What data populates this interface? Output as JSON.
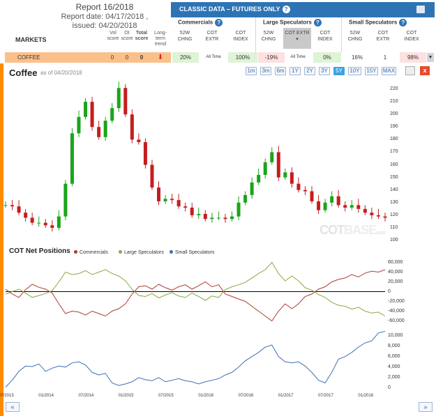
{
  "report": {
    "title": "Report 16/2018",
    "date": "Report date: 04/17/2018 ,",
    "issued": "issued: 04/20/2018"
  },
  "table_header": {
    "markets": "MARKETS",
    "vol_score": "Vol score",
    "oi_score": "OI score",
    "total_score": "Total score",
    "long_term": "Long-term trend",
    "classic": "CLASSIC DATA – FUTURES ONLY",
    "groups": [
      "Commercials",
      "Large Speculators",
      "Small Speculators"
    ],
    "sub": {
      "chng": "52W CHNG",
      "extr": "COT EXTR",
      "index": "COT INDEX"
    }
  },
  "coffee": {
    "name": "COFFEE",
    "vol": "0",
    "oi": "0",
    "total": "0",
    "com_chng": "20%",
    "com_extr": "All Time",
    "com_index": "100%",
    "lspec_chng": "-19%",
    "lspec_extr": "All Time",
    "lspec_index": "0%",
    "sspec_chng": "16%",
    "sspec_extr": "1",
    "sspec_index": "98%"
  },
  "chart_header": {
    "title": "Coffee",
    "asof": "as of 04/20/2018",
    "close": "x"
  },
  "ranges": [
    "1m",
    "3m",
    "6m",
    "1Y",
    "2Y",
    "3Y",
    "5Y",
    "10Y",
    "15Y",
    "MAX"
  ],
  "active_range": "5Y",
  "net_positions": {
    "title": "COT Net Positions",
    "legend": [
      "Commercials",
      "Large Speculators",
      "Small Speculators"
    ]
  },
  "watermark": {
    "main": "COT",
    "sub": "BASE",
    "tld": ".com"
  },
  "nav": {
    "prev": "«",
    "next": "»"
  },
  "colors": {
    "up": "#1aa51a",
    "down": "#c41e1e",
    "commercials": "#b03a2e",
    "large_specs": "#8aa83a",
    "small_specs": "#3d6fb5",
    "accent": "#ff8a00",
    "header_blue": "#2e74b5"
  },
  "chart_data": [
    {
      "type": "candlestick",
      "title": "Coffee",
      "ylim": [
        100,
        225
      ],
      "yticks": [
        100,
        110,
        120,
        130,
        140,
        150,
        160,
        170,
        180,
        190,
        200,
        210,
        220
      ],
      "x_labels": [
        "07/2013",
        "01/2014",
        "07/2014",
        "01/2015",
        "07/2015",
        "01/2016",
        "07/2016",
        "01/2017",
        "07/2017",
        "01/2018"
      ],
      "x_ticks": [
        0,
        6,
        12,
        18,
        24,
        30,
        36,
        42,
        48,
        54
      ],
      "n_months": 58,
      "closes": [
        128,
        127,
        122,
        118,
        114,
        114,
        112,
        110,
        119,
        145,
        185,
        198,
        210,
        190,
        182,
        195,
        205,
        221,
        200,
        180,
        178,
        160,
        142,
        131,
        133,
        132,
        127,
        126,
        120,
        121,
        117,
        118,
        118,
        117,
        119,
        130,
        136,
        146,
        152,
        162,
        170,
        150,
        154,
        145,
        140,
        139,
        131,
        124,
        130,
        135,
        128,
        126,
        128,
        125,
        122,
        120,
        119,
        118
      ]
    },
    {
      "type": "line",
      "title": "COT Net Positions",
      "ylim": [
        -65000,
        65000
      ],
      "yticks": [
        -60000,
        -40000,
        -20000,
        0,
        20000,
        40000,
        60000
      ],
      "ytick_labels": [
        "-60,000",
        "-40,000",
        "-20,000",
        "0",
        "20,000",
        "40,000",
        "60,000"
      ],
      "n_months": 58,
      "series": [
        {
          "name": "Commercials",
          "values": [
            5000,
            -5000,
            -12000,
            4000,
            15000,
            9000,
            5000,
            -3000,
            -25000,
            -45000,
            -40000,
            -42000,
            -48000,
            -40000,
            -45000,
            -50000,
            -40000,
            -35000,
            -25000,
            -5000,
            10000,
            12000,
            5000,
            15000,
            8000,
            3000,
            10000,
            14000,
            5000,
            12000,
            20000,
            10000,
            14000,
            -5000,
            -10000,
            -15000,
            -20000,
            -30000,
            -40000,
            -50000,
            -60000,
            -40000,
            -25000,
            -35000,
            -25000,
            -10000,
            -5000,
            5000,
            10000,
            20000,
            25000,
            28000,
            35000,
            30000,
            38000,
            42000,
            40000,
            45000
          ]
        },
        {
          "name": "Large Speculators",
          "values": [
            -5000,
            0,
            5000,
            -3000,
            -12000,
            -8000,
            -4000,
            2000,
            20000,
            40000,
            35000,
            37000,
            43000,
            35000,
            40000,
            45000,
            37000,
            32000,
            22000,
            5000,
            -8000,
            -10000,
            -4000,
            -13000,
            -7000,
            -2000,
            -9000,
            -12000,
            -3000,
            -10000,
            -18000,
            -9000,
            -12000,
            4000,
            10000,
            14000,
            19000,
            28000,
            37000,
            45000,
            60000,
            37000,
            22000,
            32000,
            22000,
            8000,
            3000,
            -6000,
            -12000,
            -22000,
            -28000,
            -30000,
            -36000,
            -32000,
            -40000,
            -44000,
            -42000,
            -50000
          ]
        }
      ]
    },
    {
      "type": "line",
      "series_name": "Small Speculators",
      "ylim": [
        0,
        11000
      ],
      "yticks": [
        0,
        2000,
        4000,
        6000,
        8000,
        10000
      ],
      "ytick_labels": [
        "0",
        "2,000",
        "4,000",
        "6,000",
        "8,000",
        "10,000"
      ],
      "n_months": 58,
      "values": [
        200,
        1500,
        3200,
        4200,
        4100,
        4600,
        3200,
        3800,
        4200,
        4000,
        4800,
        5000,
        4400,
        3000,
        2500,
        2800,
        1000,
        500,
        800,
        1200,
        2000,
        1600,
        1400,
        2000,
        1200,
        1500,
        1800,
        1400,
        1200,
        800,
        1200,
        1500,
        1800,
        2500,
        3000,
        4000,
        5200,
        6000,
        6800,
        7800,
        8200,
        6000,
        5000,
        4800,
        5000,
        4200,
        3000,
        1500,
        1000,
        3000,
        5500,
        6000,
        6800,
        7800,
        8600,
        9000,
        10500,
        10800
      ]
    }
  ]
}
